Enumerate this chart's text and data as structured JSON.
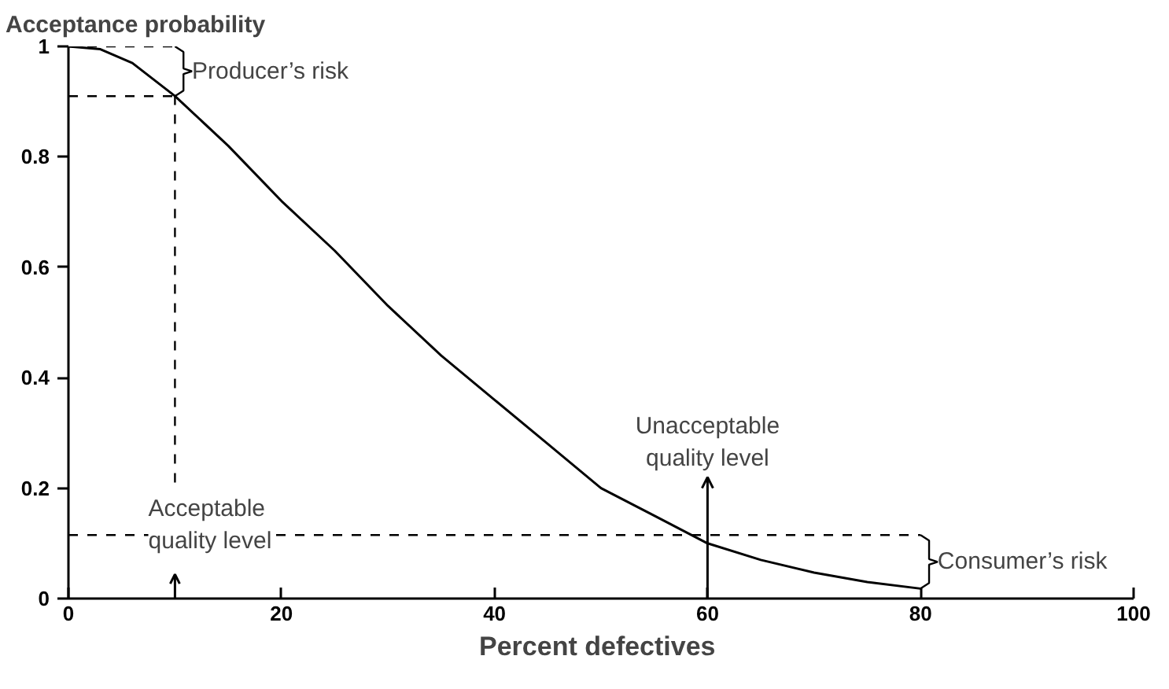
{
  "chart_data": {
    "type": "line",
    "ylabel": "Acceptance probability",
    "xlabel": "Percent  defectives",
    "x": [
      0,
      3,
      6,
      10,
      15,
      20,
      25,
      30,
      35,
      40,
      45,
      50,
      55,
      60,
      65,
      70,
      75,
      80
    ],
    "series": [
      {
        "color": "#000000",
        "values": [
          1.0,
          0.995,
          0.97,
          0.91,
          0.82,
          0.72,
          0.63,
          0.53,
          0.44,
          0.36,
          0.28,
          0.2,
          0.15,
          0.1,
          0.07,
          0.047,
          0.03,
          0.018
        ]
      }
    ],
    "xlim": [
      0,
      100
    ],
    "ylim": [
      0,
      1
    ],
    "xticks": [
      0,
      20,
      40,
      60,
      80,
      100
    ],
    "yticks": [
      0,
      {
        "value": 0.2,
        "label": "0.2"
      },
      {
        "value": 0.4,
        "label": "0.4"
      },
      {
        "value": 0.6,
        "label": "0.6"
      },
      {
        "value": 0.8,
        "label": "0.8"
      },
      1
    ],
    "grid": false,
    "marker": "none",
    "line_style": "solid",
    "ref_lines": [
      {
        "axis": "y",
        "value": 1,
        "line_style": "dashed"
      },
      {
        "axis": "y",
        "value": 0.91,
        "line_style": "dashed"
      },
      {
        "axis": "y",
        "value": 0.115,
        "line_style": "dashed"
      },
      {
        "axis": "x",
        "value": 10,
        "label": "Acceptable\nquality level",
        "line_style": "dashed"
      },
      {
        "axis": "x",
        "value": 60,
        "label": "Unacceptable\nquality level",
        "line_style": "solid"
      }
    ],
    "annotations": [
      "Producer’s risk",
      "Consumer’s risk"
    ]
  }
}
